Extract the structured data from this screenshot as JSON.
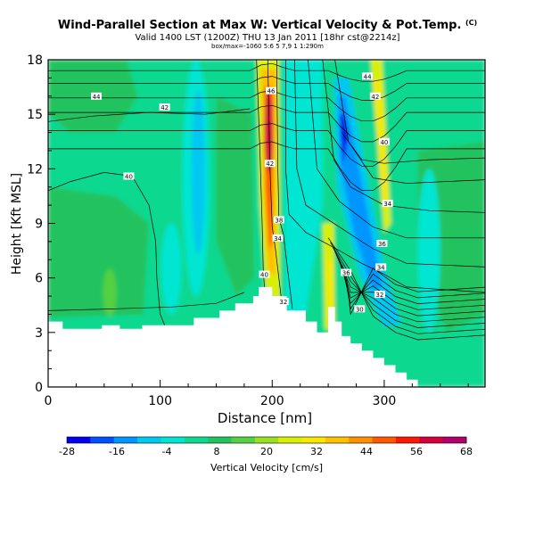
{
  "title": "Wind-Parallel Section at Max W: Vertical Velocity & Pot.Temp.",
  "title_mark": "(C)",
  "subtitle": "Valid 1400 LST (1200Z) THU 13 Jan 2011 [18hr cst@2214z]",
  "subtitle2": "box/max=-1060 5:6 5 7,9 1 1:290m",
  "chart_data": {
    "type": "heatmap",
    "xlabel": "Distance [nm]",
    "ylabel": "Height [Kft MSL]",
    "xlim": [
      0,
      390
    ],
    "ylim": [
      0,
      18
    ],
    "x_ticks": [
      0,
      100,
      200,
      300
    ],
    "x_tick_labels": [
      "0",
      "100",
      "200",
      "300"
    ],
    "y_ticks": [
      0,
      3,
      6,
      9,
      12,
      15,
      18
    ],
    "y_tick_labels": [
      "0",
      "3",
      "6",
      "9",
      "12",
      "15",
      "18"
    ],
    "grid": false,
    "colorbar": {
      "label": "Vertical Velocity [cm/s]",
      "tick_labels": [
        "-28",
        "-16",
        "-4",
        "8",
        "20",
        "32",
        "44",
        "56",
        "68"
      ],
      "levels": [
        -28,
        -22,
        -16,
        -10,
        -4,
        2,
        8,
        14,
        20,
        26,
        32,
        38,
        44,
        50,
        56,
        62,
        68
      ],
      "colors": [
        "#0000ee",
        "#0050ff",
        "#0095ff",
        "#00c8f0",
        "#00e6d2",
        "#10d890",
        "#22c35e",
        "#55d040",
        "#99e020",
        "#d8f000",
        "#f8e800",
        "#ffc000",
        "#ff9000",
        "#ff5800",
        "#ff1800",
        "#d2003c",
        "#b0006a"
      ]
    },
    "terrain_profile": {
      "x": [
        0,
        13,
        13,
        48,
        48,
        64,
        64,
        84,
        84,
        130,
        130,
        153,
        153,
        167,
        167,
        183,
        183,
        188,
        188,
        200,
        200,
        213,
        213,
        230,
        230,
        240,
        240,
        250,
        250,
        256,
        256,
        262,
        262,
        270,
        270,
        280,
        280,
        290,
        290,
        300,
        300,
        310,
        310,
        320,
        320,
        330,
        330
      ],
      "height": [
        3.6,
        3.6,
        3.2,
        3.2,
        3.4,
        3.4,
        3.2,
        3.2,
        3.4,
        3.4,
        3.8,
        3.8,
        4.2,
        4.2,
        4.6,
        4.6,
        5.0,
        5.0,
        5.5,
        5.5,
        5.0,
        5.0,
        4.2,
        4.2,
        3.6,
        3.6,
        3.0,
        3.0,
        4.4,
        4.4,
        3.6,
        3.6,
        2.8,
        2.8,
        2.4,
        2.4,
        2.0,
        2.0,
        1.6,
        1.6,
        1.2,
        1.2,
        0.8,
        0.8,
        0.4,
        0.4,
        0.0
      ]
    },
    "contour_labels": [
      {
        "value": "44",
        "x": 43,
        "y": 16.0
      },
      {
        "value": "42",
        "x": 104,
        "y": 15.4
      },
      {
        "value": "40",
        "x": 72,
        "y": 11.6
      },
      {
        "value": "46",
        "x": 199,
        "y": 16.3
      },
      {
        "value": "42",
        "x": 198,
        "y": 12.3
      },
      {
        "value": "38",
        "x": 206,
        "y": 9.2
      },
      {
        "value": "34",
        "x": 205,
        "y": 8.2
      },
      {
        "value": "40",
        "x": 193,
        "y": 6.2
      },
      {
        "value": "32",
        "x": 210,
        "y": 4.7
      },
      {
        "value": "44",
        "x": 285,
        "y": 17.1
      },
      {
        "value": "42",
        "x": 292,
        "y": 16.0
      },
      {
        "value": "40",
        "x": 300,
        "y": 13.5
      },
      {
        "value": "34",
        "x": 303,
        "y": 10.1
      },
      {
        "value": "36",
        "x": 298,
        "y": 7.9
      },
      {
        "value": "34",
        "x": 297,
        "y": 6.6
      },
      {
        "value": "36",
        "x": 266,
        "y": 6.3
      },
      {
        "value": "32",
        "x": 296,
        "y": 5.1
      },
      {
        "value": "30",
        "x": 278,
        "y": 4.3
      }
    ]
  }
}
